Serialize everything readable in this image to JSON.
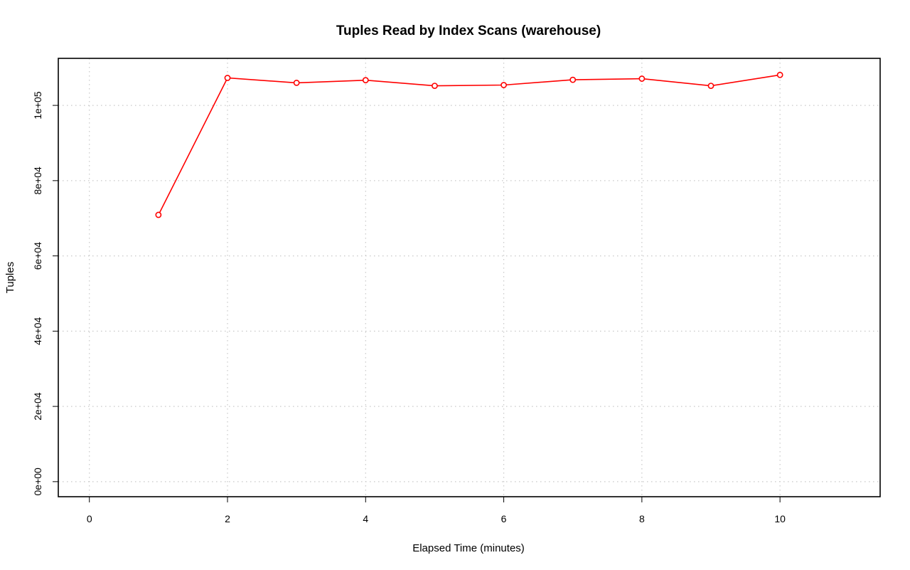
{
  "chart_data": {
    "type": "line",
    "title": "Tuples Read by Index Scans (warehouse)",
    "xlabel": "Elapsed Time (minutes)",
    "ylabel": "Tuples",
    "xlim": [
      -0.45,
      11.45
    ],
    "ylim": [
      -4000,
      112500
    ],
    "x_ticks": [
      0,
      2,
      4,
      6,
      8,
      10
    ],
    "x_tick_labels": [
      "0",
      "2",
      "4",
      "6",
      "8",
      "10"
    ],
    "y_ticks": [
      0,
      20000,
      40000,
      60000,
      80000,
      100000
    ],
    "y_tick_labels": [
      "0e+00",
      "2e+04",
      "4e+04",
      "6e+04",
      "8e+04",
      "1e+05"
    ],
    "grid": true,
    "series": [
      {
        "color": "#ff0000",
        "marker": "open-circle",
        "x": [
          1,
          2,
          3,
          4,
          5,
          6,
          7,
          8,
          9,
          10
        ],
        "y": [
          70900,
          107300,
          106000,
          106700,
          105200,
          105400,
          106800,
          107100,
          105200,
          108100
        ]
      }
    ]
  }
}
